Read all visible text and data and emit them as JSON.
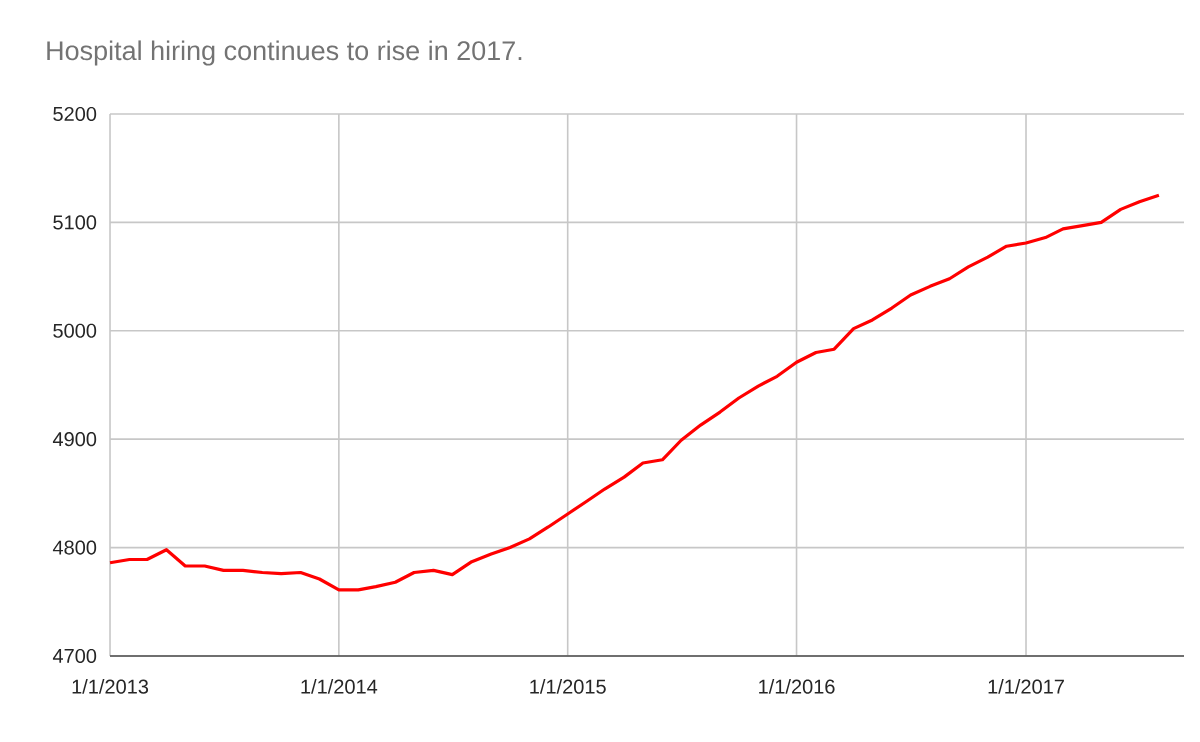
{
  "chart_data": {
    "type": "line",
    "title": "Hospital hiring continues to rise in 2017.",
    "x": [
      "2013-01-01",
      "2013-02-01",
      "2013-03-01",
      "2013-04-01",
      "2013-05-01",
      "2013-06-01",
      "2013-07-01",
      "2013-08-01",
      "2013-09-01",
      "2013-10-01",
      "2013-11-01",
      "2013-12-01",
      "2014-01-01",
      "2014-02-01",
      "2014-03-01",
      "2014-04-01",
      "2014-05-01",
      "2014-06-01",
      "2014-07-01",
      "2014-08-01",
      "2014-09-01",
      "2014-10-01",
      "2014-11-01",
      "2014-12-01",
      "2015-01-01",
      "2015-02-01",
      "2015-03-01",
      "2015-04-01",
      "2015-05-01",
      "2015-06-01",
      "2015-07-01",
      "2015-08-01",
      "2015-09-01",
      "2015-10-01",
      "2015-11-01",
      "2015-12-01",
      "2016-01-01",
      "2016-02-01",
      "2016-03-01",
      "2016-04-01",
      "2016-05-01",
      "2016-06-01",
      "2016-07-01",
      "2016-08-01",
      "2016-09-01",
      "2016-10-01",
      "2016-11-01",
      "2016-12-01",
      "2017-01-01",
      "2017-02-01",
      "2017-03-01",
      "2017-04-01",
      "2017-05-01",
      "2017-06-01",
      "2017-07-01",
      "2017-08-01"
    ],
    "series": [
      {
        "color": "#ff0000",
        "values": [
          4786,
          4789,
          4789,
          4798,
          4783,
          4783,
          4779,
          4779,
          4777,
          4776,
          4777,
          4771,
          4761,
          4761,
          4764,
          4768,
          4777,
          4779,
          4775,
          4787,
          4794,
          4800,
          4808,
          4819,
          4831,
          4843,
          4854,
          4865,
          4878,
          4881,
          4899,
          4913,
          4925,
          4938,
          4949,
          4958,
          4971,
          4980,
          4983,
          5002,
          5010,
          5021,
          5033,
          5041,
          5048,
          5059,
          5068,
          5078,
          5081,
          5086,
          5094,
          5097,
          5100,
          5112,
          5119,
          5125
        ]
      }
    ],
    "xlim": [
      "2013-01-01",
      "2017-09-10"
    ],
    "xticks": [
      {
        "value": "2013-01-01",
        "label": "1/1/2013"
      },
      {
        "value": "2014-01-01",
        "label": "1/1/2014"
      },
      {
        "value": "2015-01-01",
        "label": "1/1/2015"
      },
      {
        "value": "2016-01-01",
        "label": "1/1/2016"
      },
      {
        "value": "2017-01-01",
        "label": "1/1/2017"
      }
    ],
    "ylim": [
      4700,
      5200
    ],
    "yticks": [
      4700,
      4800,
      4900,
      5000,
      5100,
      5200
    ],
    "grid": true,
    "marker": "none",
    "line_style": "solid"
  }
}
